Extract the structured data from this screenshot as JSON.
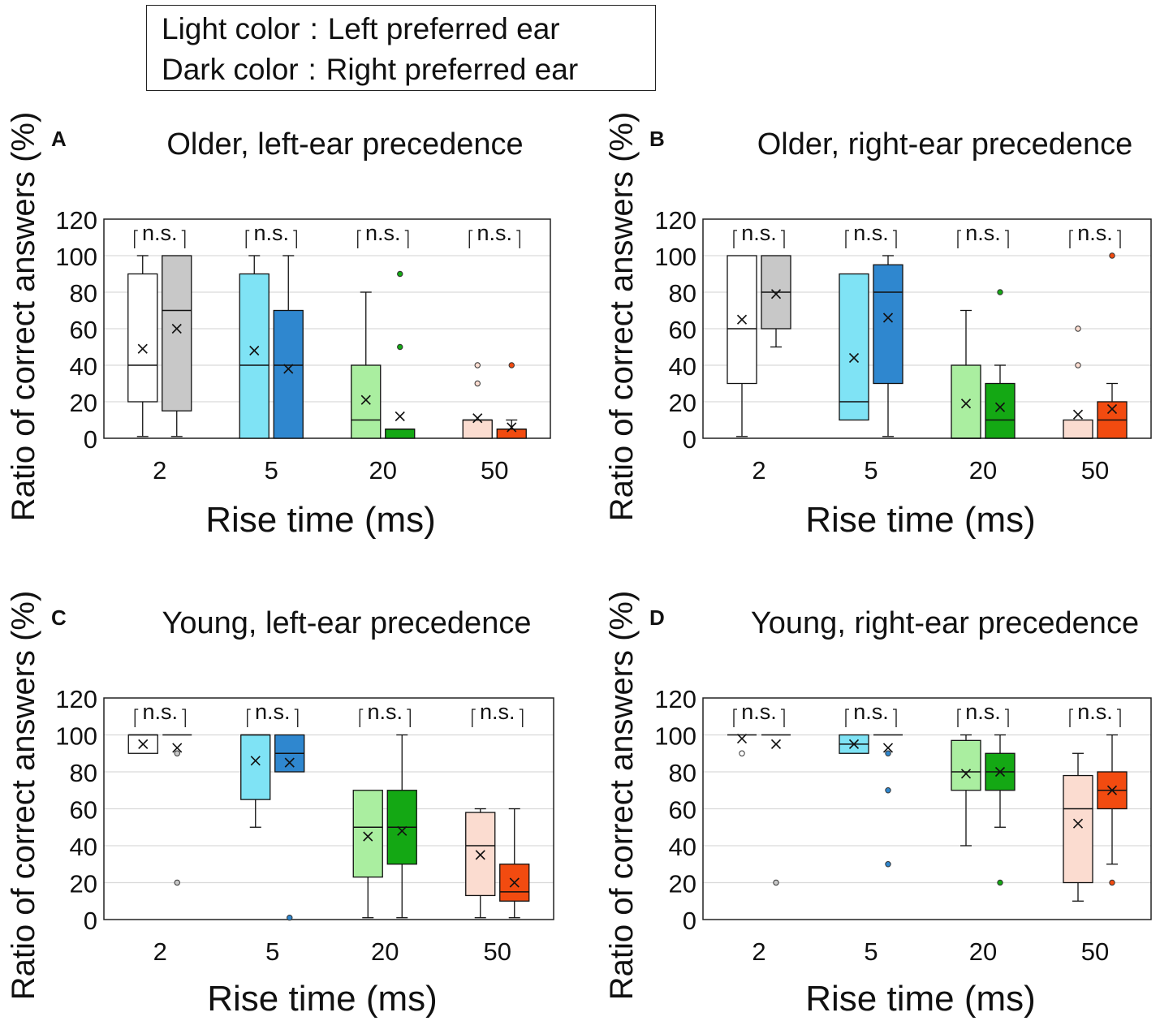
{
  "legend": {
    "light_key": "Light color",
    "light_sep": ":",
    "light_value": "Left preferred ear",
    "dark_key": "Dark color",
    "dark_sep": ":",
    "dark_value": "Right preferred ear"
  },
  "chart_data": [
    {
      "type": "box",
      "panel_letter": "A",
      "title": "Older, left-ear precedence",
      "xlabel": "Rise time (ms)",
      "ylabel": "Ratio of correct answers (%)",
      "ylim": [
        0,
        120
      ],
      "yticks": [
        "0",
        "20",
        "40",
        "60",
        "80",
        "100",
        "120"
      ],
      "categories": [
        "2",
        "5",
        "20",
        "50"
      ],
      "significance": [
        "n.s.",
        "n.s.",
        "n.s.",
        "n.s."
      ],
      "grid": true,
      "series": [
        {
          "name": "Left preferred ear",
          "boxes": [
            {
              "min": 1,
              "q1": 20,
              "median": 40,
              "q3": 90,
              "max": 100,
              "mean": 49,
              "outliers": [],
              "color": "#ffffff"
            },
            {
              "min": 0,
              "q1": 0,
              "median": 40,
              "q3": 90,
              "max": 100,
              "mean": 48,
              "outliers": [],
              "color": "#7fe3f5"
            },
            {
              "min": 0,
              "q1": 0,
              "median": 10,
              "q3": 40,
              "max": 80,
              "mean": 21,
              "outliers": [],
              "color": "#aaeea0"
            },
            {
              "min": 0,
              "q1": 0,
              "median": 10,
              "q3": 10,
              "max": 10,
              "mean": 11,
              "outliers": [
                30,
                40
              ],
              "color": "#fbdcd0"
            }
          ]
        },
        {
          "name": "Right preferred ear",
          "boxes": [
            {
              "min": 1,
              "q1": 15,
              "median": 70,
              "q3": 100,
              "max": 100,
              "mean": 60,
              "outliers": [],
              "color": "#c8c8c8"
            },
            {
              "min": 0,
              "q1": 0,
              "median": 40,
              "q3": 70,
              "max": 100,
              "mean": 38,
              "outliers": [],
              "color": "#2f87cf"
            },
            {
              "min": 0,
              "q1": 0,
              "median": 5,
              "q3": 5,
              "max": 5,
              "mean": 12,
              "outliers": [
                50,
                90
              ],
              "color": "#14a814"
            },
            {
              "min": 0,
              "q1": 0,
              "median": 5,
              "q3": 5,
              "max": 10,
              "mean": 6,
              "outliers": [
                40
              ],
              "color": "#f24b10"
            }
          ]
        }
      ]
    },
    {
      "type": "box",
      "panel_letter": "B",
      "title": "Older, right-ear precedence",
      "xlabel": "Rise time (ms)",
      "ylabel": "Ratio of correct answers (%)",
      "ylim": [
        0,
        120
      ],
      "yticks": [
        "0",
        "20",
        "40",
        "60",
        "80",
        "100",
        "120"
      ],
      "categories": [
        "2",
        "5",
        "20",
        "50"
      ],
      "significance": [
        "n.s.",
        "n.s.",
        "n.s.",
        "n.s."
      ],
      "grid": true,
      "series": [
        {
          "name": "Left preferred ear",
          "boxes": [
            {
              "min": 1,
              "q1": 30,
              "median": 60,
              "q3": 100,
              "max": 100,
              "mean": 65,
              "outliers": [],
              "color": "#ffffff"
            },
            {
              "min": 10,
              "q1": 10,
              "median": 20,
              "q3": 90,
              "max": 90,
              "mean": 44,
              "outliers": [],
              "color": "#7fe3f5"
            },
            {
              "min": 0,
              "q1": 0,
              "median": 0,
              "q3": 40,
              "max": 70,
              "mean": 19,
              "outliers": [],
              "color": "#aaeea0"
            },
            {
              "min": 0,
              "q1": 0,
              "median": 0,
              "q3": 10,
              "max": 10,
              "mean": 13,
              "outliers": [
                40,
                60
              ],
              "color": "#fbdcd0"
            }
          ]
        },
        {
          "name": "Right preferred ear",
          "boxes": [
            {
              "min": 50,
              "q1": 60,
              "median": 80,
              "q3": 100,
              "max": 100,
              "mean": 79,
              "outliers": [],
              "color": "#c8c8c8"
            },
            {
              "min": 1,
              "q1": 30,
              "median": 80,
              "q3": 95,
              "max": 100,
              "mean": 66,
              "outliers": [],
              "color": "#2f87cf"
            },
            {
              "min": 0,
              "q1": 0,
              "median": 10,
              "q3": 30,
              "max": 40,
              "mean": 17,
              "outliers": [
                80
              ],
              "color": "#14a814"
            },
            {
              "min": 0,
              "q1": 0,
              "median": 10,
              "q3": 20,
              "max": 30,
              "mean": 16,
              "outliers": [
                100
              ],
              "color": "#f24b10"
            }
          ]
        }
      ]
    },
    {
      "type": "box",
      "panel_letter": "C",
      "title": "Young, left-ear precedence",
      "xlabel": "Rise time (ms)",
      "ylabel": "Ratio of correct answers (%)",
      "ylim": [
        0,
        120
      ],
      "yticks": [
        "0",
        "20",
        "40",
        "60",
        "80",
        "100",
        "120"
      ],
      "categories": [
        "2",
        "5",
        "20",
        "50"
      ],
      "significance": [
        "n.s.",
        "n.s.",
        "n.s.",
        "n.s."
      ],
      "grid": true,
      "series": [
        {
          "name": "Left preferred ear",
          "boxes": [
            {
              "min": 90,
              "q1": 90,
              "median": 100,
              "q3": 100,
              "max": 100,
              "mean": 95,
              "outliers": [],
              "color": "#ffffff"
            },
            {
              "min": 50,
              "q1": 65,
              "median": 100,
              "q3": 100,
              "max": 100,
              "mean": 86,
              "outliers": [],
              "color": "#7fe3f5"
            },
            {
              "min": 1,
              "q1": 23,
              "median": 50,
              "q3": 70,
              "max": 70,
              "mean": 45,
              "outliers": [],
              "color": "#aaeea0"
            },
            {
              "min": 1,
              "q1": 13,
              "median": 40,
              "q3": 58,
              "max": 60,
              "mean": 35,
              "outliers": [],
              "color": "#fbdcd0"
            }
          ]
        },
        {
          "name": "Right preferred ear",
          "boxes": [
            {
              "min": 100,
              "q1": 100,
              "median": 100,
              "q3": 100,
              "max": 100,
              "mean": 93,
              "outliers": [
                20,
                90
              ],
              "color": "#c8c8c8"
            },
            {
              "min": 80,
              "q1": 80,
              "median": 90,
              "q3": 100,
              "max": 100,
              "mean": 85,
              "outliers": [
                1
              ],
              "color": "#2f87cf"
            },
            {
              "min": 1,
              "q1": 30,
              "median": 50,
              "q3": 70,
              "max": 100,
              "mean": 48,
              "outliers": [],
              "color": "#14a814"
            },
            {
              "min": 1,
              "q1": 10,
              "median": 15,
              "q3": 30,
              "max": 60,
              "mean": 20,
              "outliers": [],
              "color": "#f24b10"
            }
          ]
        }
      ]
    },
    {
      "type": "box",
      "panel_letter": "D",
      "title": "Young, right-ear precedence",
      "xlabel": "Rise time (ms)",
      "ylabel": "Ratio of correct answers (%)",
      "ylim": [
        0,
        120
      ],
      "yticks": [
        "0",
        "20",
        "40",
        "60",
        "80",
        "100",
        "120"
      ],
      "categories": [
        "2",
        "5",
        "20",
        "50"
      ],
      "significance": [
        "n.s.",
        "n.s.",
        "n.s.",
        "n.s."
      ],
      "grid": true,
      "series": [
        {
          "name": "Left preferred ear",
          "boxes": [
            {
              "min": 100,
              "q1": 100,
              "median": 100,
              "q3": 100,
              "max": 100,
              "mean": 98,
              "outliers": [
                90
              ],
              "color": "#ffffff"
            },
            {
              "min": 90,
              "q1": 90,
              "median": 95,
              "q3": 100,
              "max": 100,
              "mean": 95,
              "outliers": [],
              "color": "#7fe3f5"
            },
            {
              "min": 40,
              "q1": 70,
              "median": 80,
              "q3": 97,
              "max": 100,
              "mean": 79,
              "outliers": [],
              "color": "#aaeea0"
            },
            {
              "min": 10,
              "q1": 20,
              "median": 60,
              "q3": 78,
              "max": 90,
              "mean": 52,
              "outliers": [],
              "color": "#fbdcd0"
            }
          ]
        },
        {
          "name": "Right preferred ear",
          "boxes": [
            {
              "min": 100,
              "q1": 100,
              "median": 100,
              "q3": 100,
              "max": 100,
              "mean": 95,
              "outliers": [
                20
              ],
              "color": "#c8c8c8"
            },
            {
              "min": 100,
              "q1": 100,
              "median": 100,
              "q3": 100,
              "max": 100,
              "mean": 93,
              "outliers": [
                30,
                70,
                90
              ],
              "color": "#2f87cf"
            },
            {
              "min": 50,
              "q1": 70,
              "median": 80,
              "q3": 90,
              "max": 100,
              "mean": 80,
              "outliers": [
                20
              ],
              "color": "#14a814"
            },
            {
              "min": 30,
              "q1": 60,
              "median": 70,
              "q3": 80,
              "max": 100,
              "mean": 70,
              "outliers": [
                20
              ],
              "color": "#f24b10"
            }
          ]
        }
      ]
    }
  ]
}
